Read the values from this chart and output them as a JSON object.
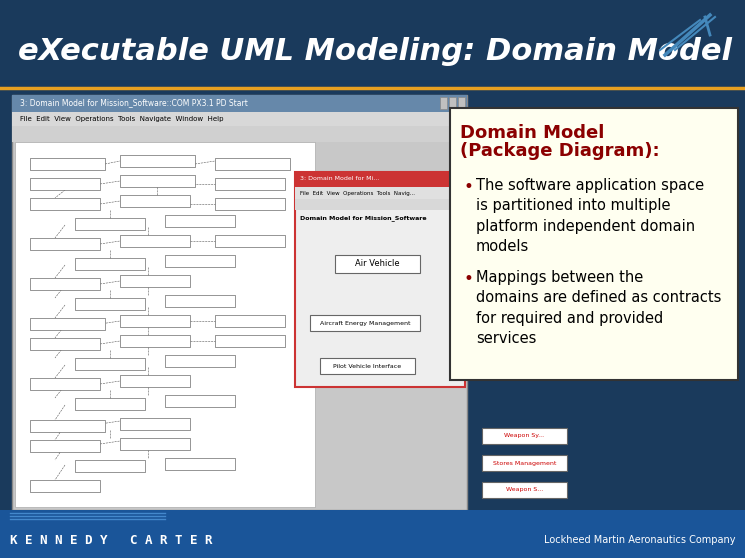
{
  "title": "eXecutable UML Modeling: Domain Model",
  "title_color": "#FFFFFF",
  "title_fontsize": 22,
  "bg_color": "#1a3a5c",
  "header_bg": "#1a3a5c",
  "orange_line_color": "#e8a020",
  "footer_text_left": "K E N N E D Y   C A R T E R",
  "footer_text_right": "Lockheed Martin Aeronautics Company",
  "footer_color": "#FFFFFF",
  "box_title_line1": "Domain Model",
  "box_title_line2": "(Package Diagram):",
  "box_title_color": "#8b0000",
  "box_bg": "#fffff0",
  "box_border": "#333333",
  "bullet_color": "#8b0000",
  "bullet1": "The software application space\nis partitioned into multiple\nplatform independent domain\nmodels",
  "bullet2": "Mappings between the\ndomains are defined as contracts\nfor required and provided\nservices",
  "bullet_text_color": "#000000"
}
